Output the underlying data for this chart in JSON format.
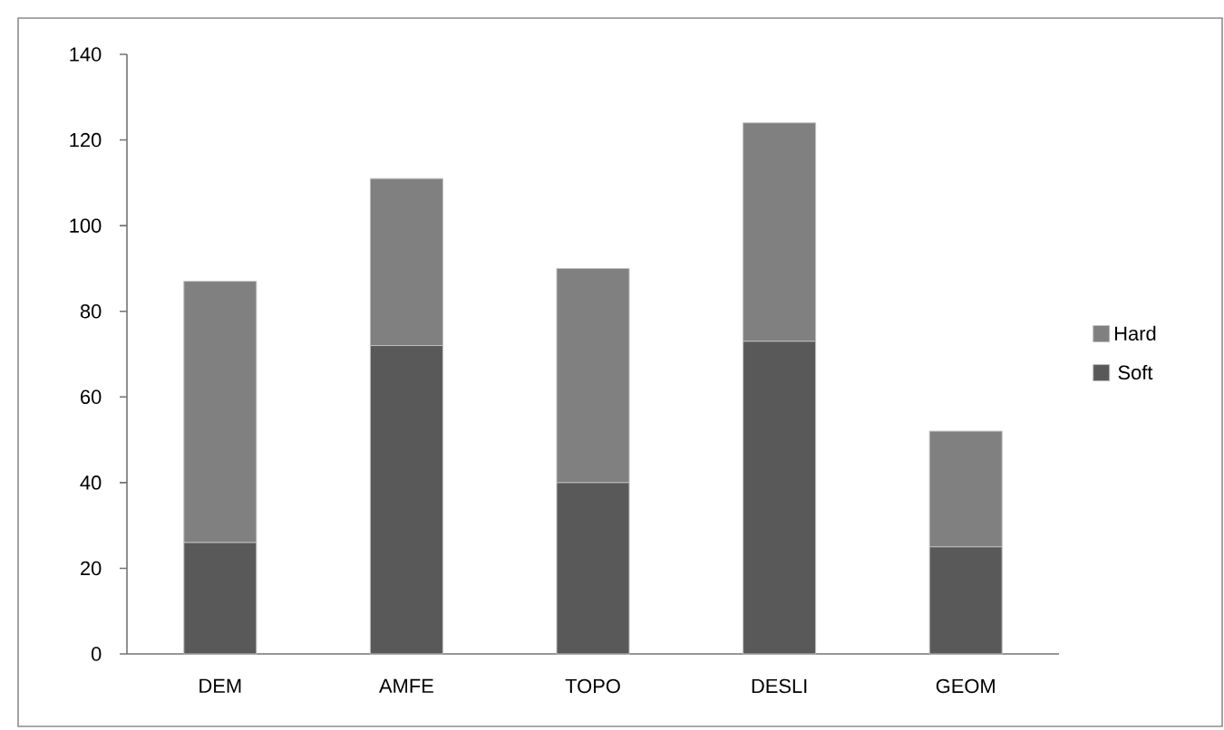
{
  "chart_data": {
    "type": "bar",
    "stacked": true,
    "categories": [
      "DEM",
      "AMFE",
      "TOPO",
      "DESLI",
      "GEOM"
    ],
    "series": [
      {
        "name": "Soft",
        "color": "#595959",
        "values": [
          26,
          72,
          40,
          73,
          25
        ]
      },
      {
        "name": "Hard",
        "color": "#808080",
        "values": [
          61,
          39,
          50,
          51,
          27
        ]
      }
    ],
    "ylim": [
      0,
      140
    ],
    "yticks": [
      0,
      20,
      40,
      60,
      80,
      100,
      120,
      140
    ],
    "grid": false,
    "legend": "right"
  }
}
